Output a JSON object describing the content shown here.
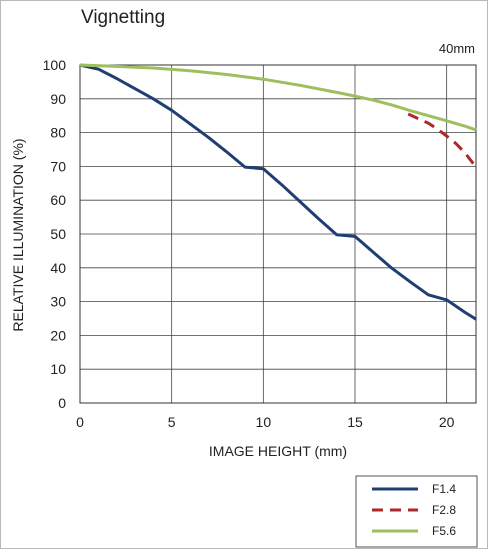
{
  "chart_data": {
    "type": "line",
    "title": "Vignetting",
    "subtitle": "40mm",
    "xlabel": "IMAGE HEIGHT (mm)",
    "ylabel": "RELATIVE ILLUMINATION (%)",
    "xlim": [
      0,
      21.6
    ],
    "ylim": [
      0,
      100
    ],
    "xticks": [
      0,
      5,
      10,
      15,
      20
    ],
    "yticks": [
      0,
      10,
      20,
      30,
      40,
      50,
      60,
      70,
      80,
      90,
      100
    ],
    "grid": true,
    "legend_position": "bottom-right",
    "series": [
      {
        "name": "F1.4",
        "color": "#1f3e73",
        "dash": "solid",
        "points": [
          [
            0,
            100
          ],
          [
            1,
            98.8
          ],
          [
            2,
            96
          ],
          [
            3,
            93
          ],
          [
            4,
            90
          ],
          [
            5,
            86.6
          ],
          [
            6,
            82.6
          ],
          [
            7,
            78.6
          ],
          [
            8,
            74.3
          ],
          [
            9,
            69.8
          ],
          [
            10,
            69.3
          ],
          [
            11,
            64.6
          ],
          [
            12,
            59.6
          ],
          [
            13,
            54.6
          ],
          [
            14,
            49.8
          ],
          [
            15,
            49.3
          ],
          [
            16,
            44.6
          ],
          [
            17,
            39.9
          ],
          [
            18,
            35.9
          ],
          [
            19,
            32
          ],
          [
            20,
            30.5
          ],
          [
            21,
            26.8
          ],
          [
            21.6,
            24.8
          ]
        ]
      },
      {
        "name": "F2.8",
        "color": "#b0272a",
        "dash": "dashed",
        "points": [
          [
            17.9,
            85.5
          ],
          [
            18.5,
            84
          ],
          [
            19,
            82.8
          ],
          [
            19.5,
            81
          ],
          [
            20,
            79
          ],
          [
            20.5,
            76.8
          ],
          [
            21,
            74
          ],
          [
            21.6,
            69.8
          ]
        ]
      },
      {
        "name": "F5.6",
        "color": "#9dbf5e",
        "dash": "solid",
        "points": [
          [
            0,
            100
          ],
          [
            2,
            99.6
          ],
          [
            4,
            99.1
          ],
          [
            6,
            98.3
          ],
          [
            8,
            97.2
          ],
          [
            10,
            95.8
          ],
          [
            12,
            94
          ],
          [
            14,
            91.9
          ],
          [
            15,
            90.8
          ],
          [
            16,
            89.6
          ],
          [
            17,
            88.2
          ],
          [
            18,
            86.5
          ],
          [
            19,
            85
          ],
          [
            20,
            83.5
          ],
          [
            21,
            81.9
          ],
          [
            21.6,
            80.8
          ]
        ]
      }
    ]
  }
}
